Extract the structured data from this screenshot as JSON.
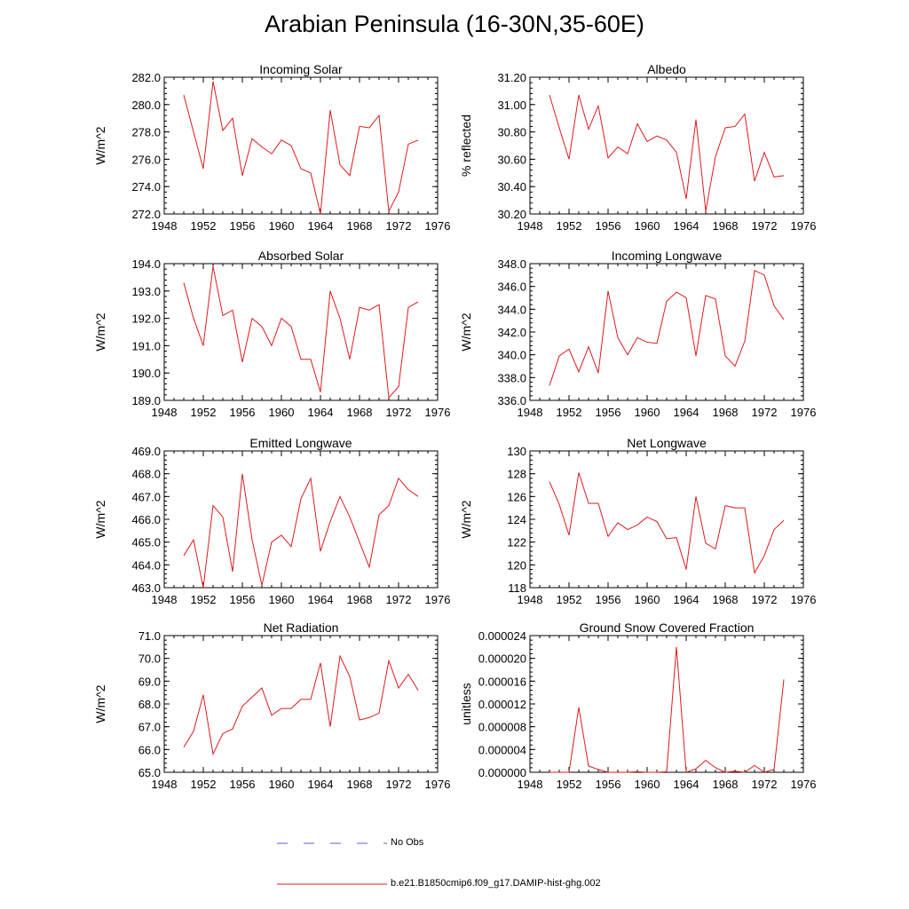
{
  "title": "Arabian Peninsula (16-30N,35-60E)",
  "legend": [
    {
      "label": "No Obs",
      "color": "#5b5bd6",
      "style": "dashed"
    },
    {
      "label": "b.e21.B1850cmip6.f09_g17.DAMIP-hist-ghg.002",
      "color": "#e0191b",
      "style": "solid"
    }
  ],
  "colors": {
    "series": "#e0191b",
    "axis": "#000000"
  },
  "chart_data": [
    {
      "type": "line",
      "title": "Incoming Solar",
      "xlabel": "",
      "ylabel": "W/m^2",
      "xlim": [
        1948,
        1976
      ],
      "ylim": [
        272,
        282
      ],
      "xticks": [
        "1948",
        "1952",
        "1956",
        "1960",
        "1964",
        "1968",
        "1972",
        "1976"
      ],
      "yticks": [
        "272.0",
        "274.0",
        "276.0",
        "278.0",
        "280.0",
        "282.0"
      ],
      "x": [
        1950,
        1951,
        1952,
        1953,
        1954,
        1955,
        1956,
        1957,
        1958,
        1959,
        1960,
        1961,
        1962,
        1963,
        1964,
        1965,
        1966,
        1967,
        1968,
        1969,
        1970,
        1971,
        1972,
        1973,
        1974
      ],
      "series": [
        {
          "values": [
            280.7,
            278.0,
            275.3,
            281.7,
            278.1,
            279.0,
            274.8,
            277.5,
            276.9,
            276.4,
            277.4,
            277.0,
            275.3,
            275.0,
            272.0,
            279.6,
            275.6,
            274.8,
            278.4,
            278.3,
            279.2,
            272.2,
            273.6,
            277.1,
            277.4
          ]
        }
      ]
    },
    {
      "type": "line",
      "title": "Albedo",
      "xlabel": "",
      "ylabel": "% reflected",
      "xlim": [
        1948,
        1976
      ],
      "ylim": [
        30.2,
        31.2
      ],
      "xticks": [
        "1948",
        "1952",
        "1956",
        "1960",
        "1964",
        "1968",
        "1972",
        "1976"
      ],
      "yticks": [
        "30.20",
        "30.40",
        "30.60",
        "30.80",
        "31.00",
        "31.20"
      ],
      "x": [
        1950,
        1951,
        1952,
        1953,
        1954,
        1955,
        1956,
        1957,
        1958,
        1959,
        1960,
        1961,
        1962,
        1963,
        1964,
        1965,
        1966,
        1967,
        1968,
        1969,
        1970,
        1971,
        1972,
        1973,
        1974
      ],
      "series": [
        {
          "values": [
            31.07,
            30.83,
            30.6,
            31.07,
            30.82,
            30.99,
            30.61,
            30.69,
            30.64,
            30.86,
            30.73,
            30.77,
            30.74,
            30.65,
            30.31,
            30.89,
            30.22,
            30.62,
            30.83,
            30.84,
            30.93,
            30.44,
            30.65,
            30.47,
            30.48
          ]
        }
      ]
    },
    {
      "type": "line",
      "title": "Absorbed Solar",
      "xlabel": "",
      "ylabel": "W/m^2",
      "xlim": [
        1948,
        1976
      ],
      "ylim": [
        189,
        194
      ],
      "xticks": [
        "1948",
        "1952",
        "1956",
        "1960",
        "1964",
        "1968",
        "1972",
        "1976"
      ],
      "yticks": [
        "189.0",
        "190.0",
        "191.0",
        "192.0",
        "193.0",
        "194.0"
      ],
      "x": [
        1950,
        1951,
        1952,
        1953,
        1954,
        1955,
        1956,
        1957,
        1958,
        1959,
        1960,
        1961,
        1962,
        1963,
        1964,
        1965,
        1966,
        1967,
        1968,
        1969,
        1970,
        1971,
        1972,
        1973,
        1974
      ],
      "series": [
        {
          "values": [
            193.3,
            192.0,
            191.0,
            193.9,
            192.1,
            192.3,
            190.4,
            192.0,
            191.7,
            191.0,
            192.0,
            191.7,
            190.5,
            190.5,
            189.3,
            193.0,
            192.0,
            190.5,
            192.4,
            192.3,
            192.5,
            189.1,
            189.5,
            192.4,
            192.6
          ]
        }
      ]
    },
    {
      "type": "line",
      "title": "Incoming Longwave",
      "xlabel": "",
      "ylabel": "W/m^2",
      "xlim": [
        1948,
        1976
      ],
      "ylim": [
        336,
        348
      ],
      "xticks": [
        "1948",
        "1952",
        "1956",
        "1960",
        "1964",
        "1968",
        "1972",
        "1976"
      ],
      "yticks": [
        "336.0",
        "338.0",
        "340.0",
        "342.0",
        "344.0",
        "346.0",
        "348.0"
      ],
      "x": [
        1950,
        1951,
        1952,
        1953,
        1954,
        1955,
        1956,
        1957,
        1958,
        1959,
        1960,
        1961,
        1962,
        1963,
        1964,
        1965,
        1966,
        1967,
        1968,
        1969,
        1970,
        1971,
        1972,
        1973,
        1974
      ],
      "series": [
        {
          "values": [
            337.3,
            339.9,
            340.5,
            338.5,
            340.7,
            338.4,
            345.6,
            341.5,
            340.0,
            341.5,
            341.1,
            341.0,
            344.7,
            345.5,
            345.0,
            339.9,
            345.2,
            344.9,
            339.9,
            339.0,
            341.2,
            347.4,
            347.0,
            344.3,
            343.1
          ]
        }
      ]
    },
    {
      "type": "line",
      "title": "Emitted Longwave",
      "xlabel": "",
      "ylabel": "W/m^2",
      "xlim": [
        1948,
        1976
      ],
      "ylim": [
        463,
        469
      ],
      "xticks": [
        "1948",
        "1952",
        "1956",
        "1960",
        "1964",
        "1968",
        "1972",
        "1976"
      ],
      "yticks": [
        "463.0",
        "464.0",
        "465.0",
        "466.0",
        "467.0",
        "468.0",
        "469.0"
      ],
      "x": [
        1950,
        1951,
        1952,
        1953,
        1954,
        1955,
        1956,
        1957,
        1958,
        1959,
        1960,
        1961,
        1962,
        1963,
        1964,
        1965,
        1966,
        1967,
        1968,
        1969,
        1970,
        1971,
        1972,
        1973,
        1974
      ],
      "series": [
        {
          "values": [
            464.4,
            465.1,
            463.0,
            466.6,
            466.1,
            463.7,
            468.0,
            465.1,
            463.1,
            465.0,
            465.3,
            464.8,
            466.9,
            467.8,
            464.6,
            465.9,
            467.0,
            466.1,
            465.0,
            463.9,
            466.2,
            466.6,
            467.8,
            467.3,
            467.0
          ]
        }
      ]
    },
    {
      "type": "line",
      "title": "Net Longwave",
      "xlabel": "",
      "ylabel": "W/m^2",
      "xlim": [
        1948,
        1976
      ],
      "ylim": [
        118,
        130
      ],
      "xticks": [
        "1948",
        "1952",
        "1956",
        "1960",
        "1964",
        "1968",
        "1972",
        "1976"
      ],
      "yticks": [
        "118",
        "120",
        "122",
        "124",
        "126",
        "128",
        "130"
      ],
      "x": [
        1950,
        1951,
        1952,
        1953,
        1954,
        1955,
        1956,
        1957,
        1958,
        1959,
        1960,
        1961,
        1962,
        1963,
        1964,
        1965,
        1966,
        1967,
        1968,
        1969,
        1970,
        1971,
        1972,
        1973,
        1974
      ],
      "series": [
        {
          "values": [
            127.3,
            125.3,
            122.6,
            128.1,
            125.4,
            125.4,
            122.5,
            123.7,
            123.1,
            123.5,
            124.2,
            123.8,
            122.3,
            122.4,
            119.6,
            126.0,
            121.9,
            121.4,
            125.2,
            125.0,
            125.0,
            119.3,
            120.8,
            123.1,
            123.9
          ]
        }
      ]
    },
    {
      "type": "line",
      "title": "Net Radiation",
      "xlabel": "",
      "ylabel": "W/m^2",
      "xlim": [
        1948,
        1976
      ],
      "ylim": [
        65,
        71
      ],
      "xticks": [
        "1948",
        "1952",
        "1956",
        "1960",
        "1964",
        "1968",
        "1972",
        "1976"
      ],
      "yticks": [
        "65.0",
        "66.0",
        "67.0",
        "68.0",
        "69.0",
        "70.0",
        "71.0"
      ],
      "x": [
        1950,
        1951,
        1952,
        1953,
        1954,
        1955,
        1956,
        1957,
        1958,
        1959,
        1960,
        1961,
        1962,
        1963,
        1964,
        1965,
        1966,
        1967,
        1968,
        1969,
        1970,
        1971,
        1972,
        1973,
        1974
      ],
      "series": [
        {
          "values": [
            66.1,
            66.8,
            68.4,
            65.8,
            66.7,
            66.9,
            67.9,
            68.3,
            68.7,
            67.5,
            67.8,
            67.8,
            68.2,
            68.2,
            69.8,
            67.0,
            70.1,
            69.2,
            67.3,
            67.4,
            67.6,
            69.9,
            68.7,
            69.3,
            68.6
          ]
        }
      ]
    },
    {
      "type": "line",
      "title": "Ground Snow Covered Fraction",
      "xlabel": "",
      "ylabel": "unitless",
      "xlim": [
        1948,
        1976
      ],
      "ylim": [
        0,
        2.4e-05
      ],
      "xticks": [
        "1948",
        "1952",
        "1956",
        "1960",
        "1964",
        "1968",
        "1972",
        "1976"
      ],
      "yticks": [
        "0.000000",
        "0.000004",
        "0.000008",
        "0.000012",
        "0.000016",
        "0.000020",
        "0.000024"
      ],
      "x": [
        1950,
        1951,
        1952,
        1953,
        1954,
        1955,
        1956,
        1957,
        1958,
        1959,
        1960,
        1961,
        1962,
        1963,
        1964,
        1965,
        1966,
        1967,
        1968,
        1969,
        1970,
        1971,
        1972,
        1973,
        1974
      ],
      "series": [
        {
          "values": [
            0.0,
            0.0,
            0.0,
            1.14e-05,
            1.1e-06,
            5e-07,
            0.0,
            0.0,
            0.0,
            1e-07,
            0.0,
            0.0,
            1e-07,
            2.2e-05,
            0.0,
            6e-07,
            2.1e-06,
            8e-07,
            0.0,
            2e-07,
            0.0,
            1.2e-06,
            0.0,
            5e-07,
            1.63e-05
          ]
        }
      ]
    }
  ]
}
